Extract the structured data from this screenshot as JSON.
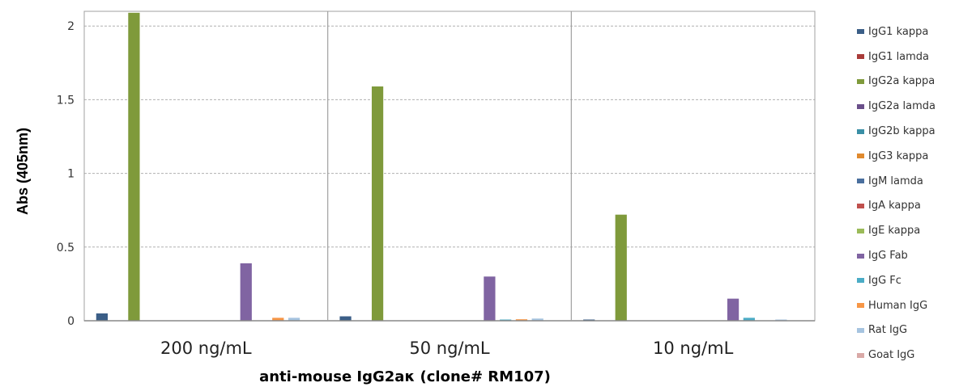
{
  "chart_data": {
    "type": "bar",
    "title": "",
    "xlabel": "anti-mouse IgG2aκ (clone# RM107)",
    "ylabel": "Abs (405nm)",
    "ylim": [
      0,
      2.1
    ],
    "yticks": [
      0,
      0.5,
      1,
      1.5,
      2
    ],
    "ytick_labels": [
      "0",
      "0.5",
      "1",
      "1.5",
      "2"
    ],
    "grid": true,
    "legend_position": "right",
    "categories": [
      "200 ng/mL",
      "50 ng/mL",
      "10 ng/mL"
    ],
    "series": [
      {
        "name": "IgG1 kappa",
        "color": "#3b5e87",
        "values": [
          0.05,
          0.03,
          0.005
        ]
      },
      {
        "name": "IgG1 lamda",
        "color": "#a93b39",
        "values": [
          0.0,
          0.0,
          0.0
        ]
      },
      {
        "name": "IgG2a kappa",
        "color": "#7f9a3b",
        "values": [
          2.09,
          1.59,
          0.72
        ]
      },
      {
        "name": "IgG2a lamda",
        "color": "#6a4f8a",
        "values": [
          0.0,
          0.0,
          0.0
        ]
      },
      {
        "name": "IgG2b kappa",
        "color": "#3a8fa6",
        "values": [
          0.0,
          0.0,
          0.0
        ]
      },
      {
        "name": "IgG3 kappa",
        "color": "#e08a2e",
        "values": [
          0.0,
          0.0,
          0.0
        ]
      },
      {
        "name": "IgM lamda",
        "color": "#4a6f9e",
        "values": [
          0.0,
          0.0,
          0.0
        ]
      },
      {
        "name": "IgA kappa",
        "color": "#c0504d",
        "values": [
          0.0,
          0.0,
          0.0
        ]
      },
      {
        "name": "IgE kappa",
        "color": "#9bbb59",
        "values": [
          0.0,
          0.0,
          0.0
        ]
      },
      {
        "name": "IgG Fab",
        "color": "#8064a2",
        "values": [
          0.39,
          0.3,
          0.15
        ]
      },
      {
        "name": "IgG Fc",
        "color": "#4bacc6",
        "values": [
          0.0,
          0.005,
          0.02
        ]
      },
      {
        "name": "Human IgG",
        "color": "#f79646",
        "values": [
          0.02,
          0.01,
          0.0
        ]
      },
      {
        "name": "Rat IgG",
        "color": "#a6c4e0",
        "values": [
          0.02,
          0.015,
          0.005
        ]
      },
      {
        "name": "Goat IgG",
        "color": "#d9a9a7",
        "values": [
          0.0,
          0.0,
          0.0
        ]
      }
    ]
  }
}
